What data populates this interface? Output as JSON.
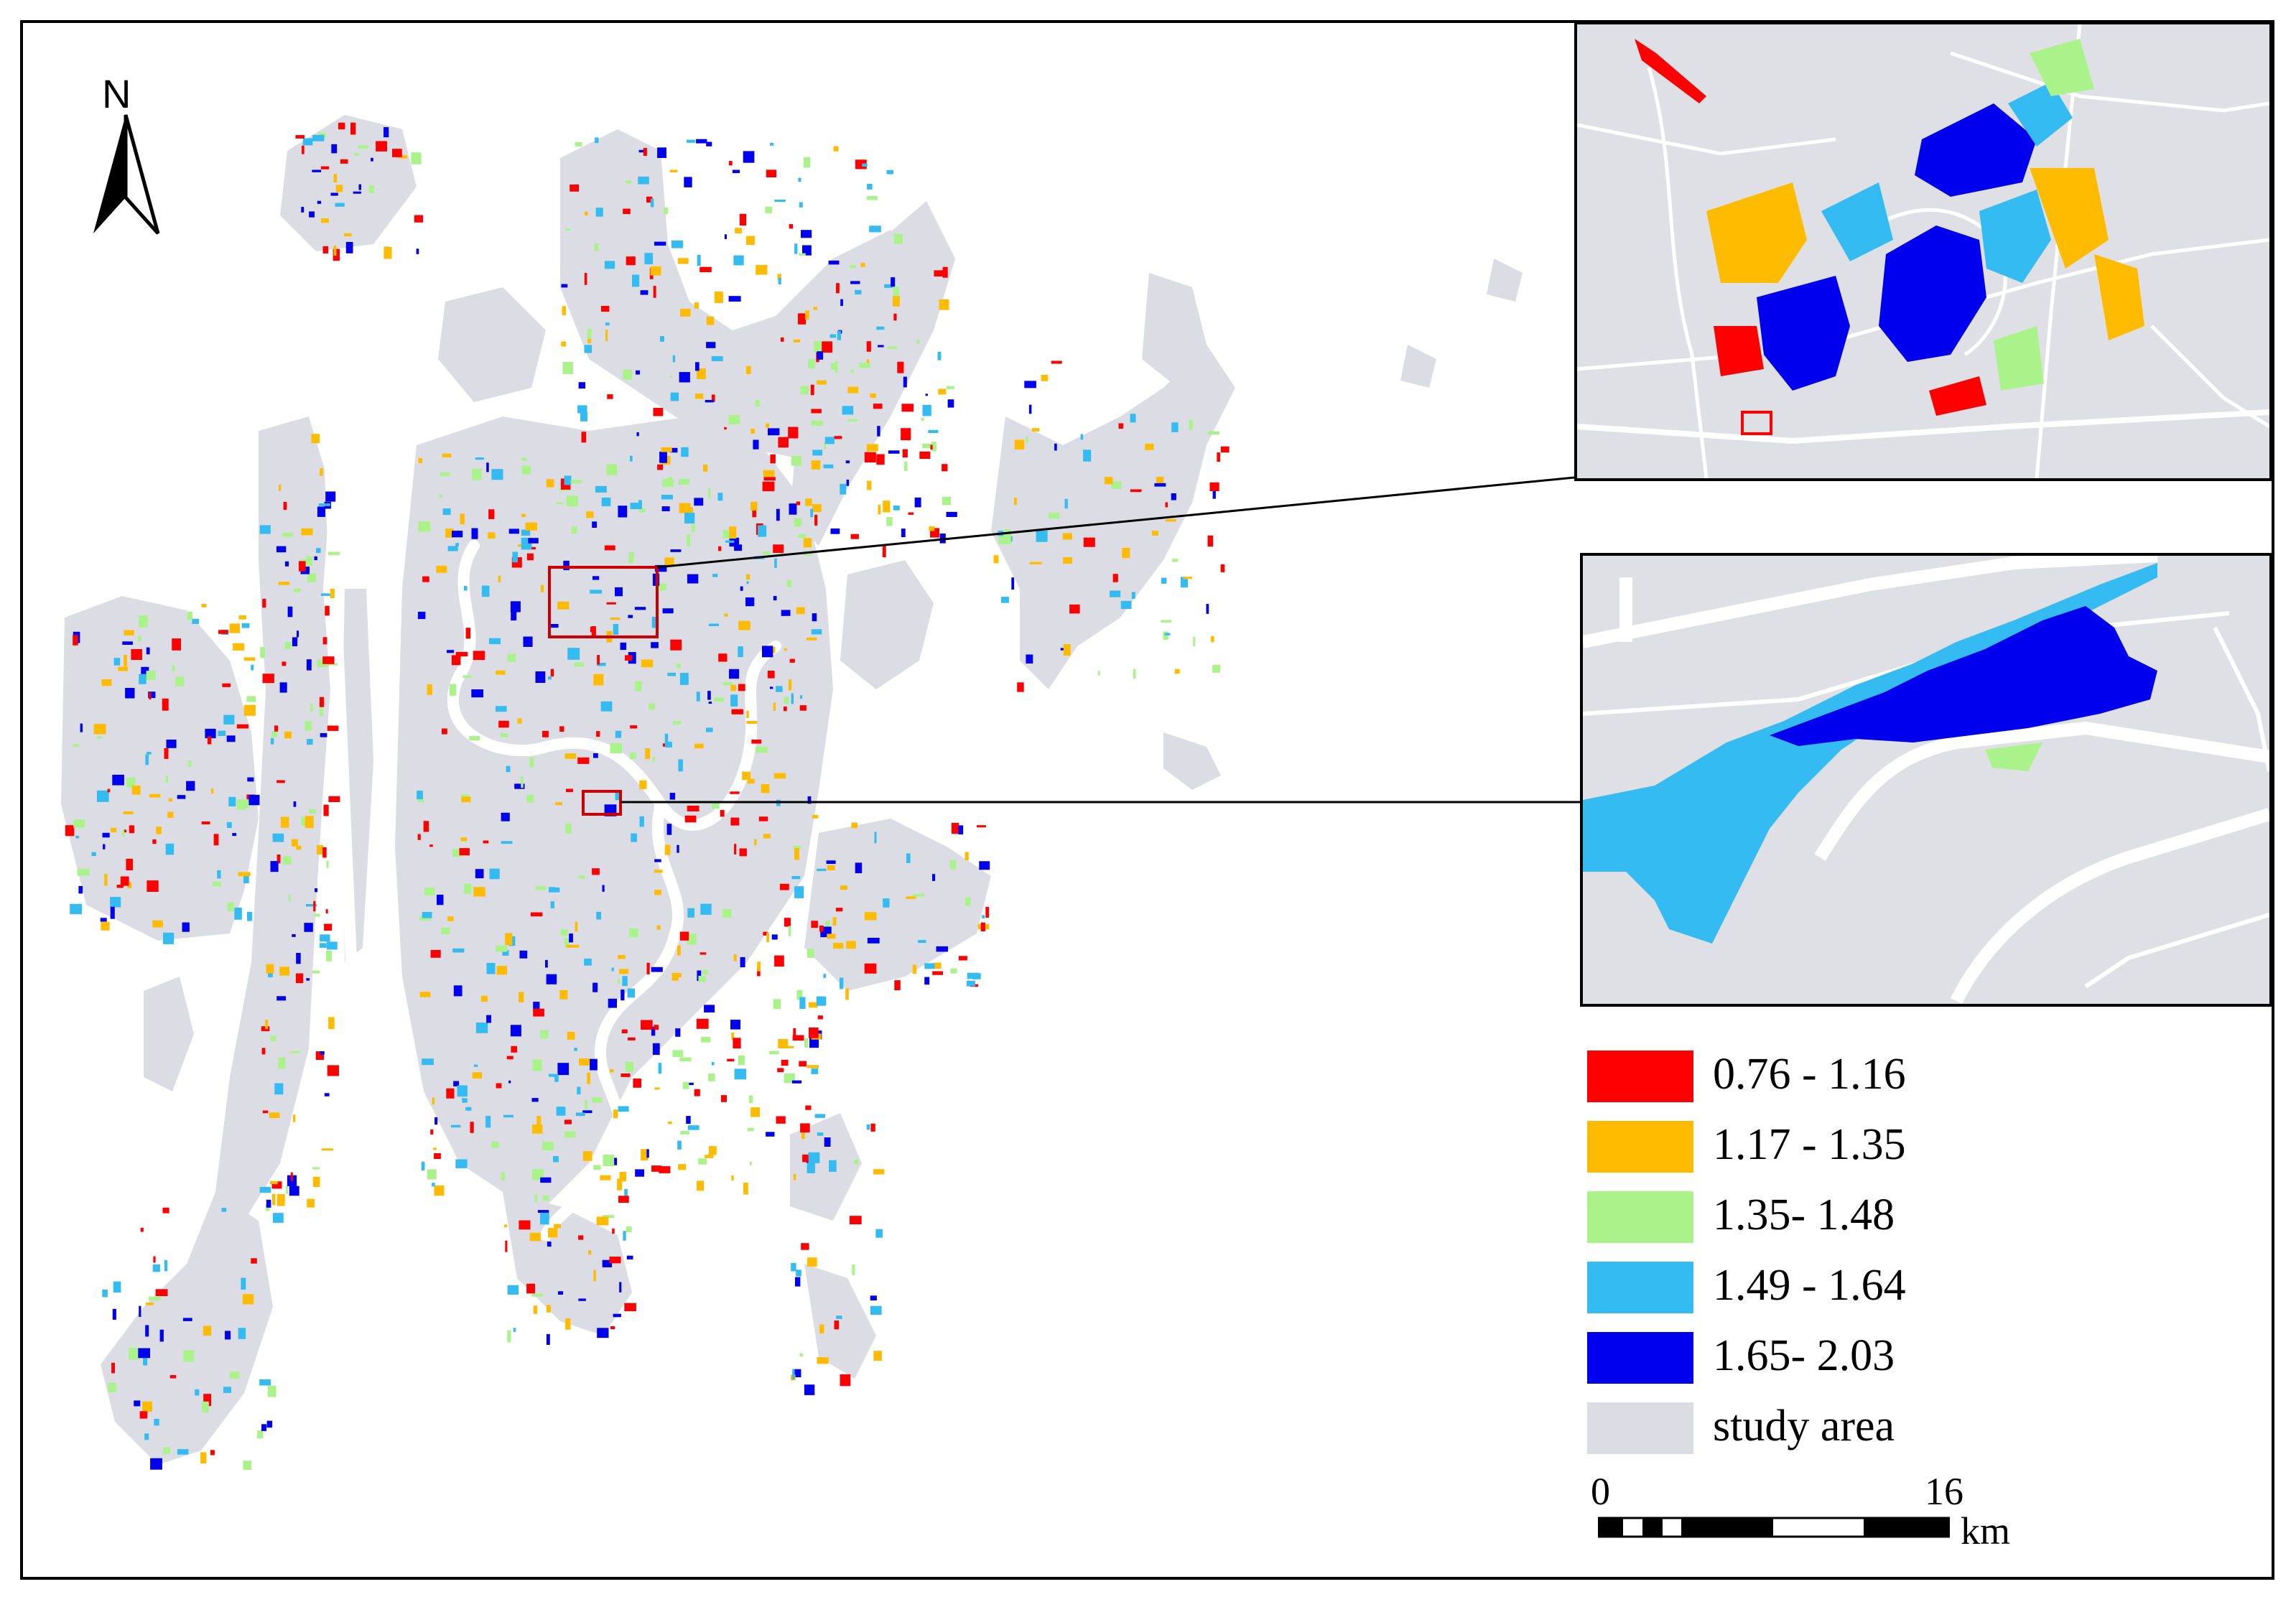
{
  "north_arrow": {
    "label": "N"
  },
  "legend": {
    "items": [
      {
        "label": "0.76 - 1.16",
        "color": "#ff0000"
      },
      {
        "label": "1.17 - 1.35",
        "color": "#ffbb00"
      },
      {
        "label": "1.35- 1.48",
        "color": "#aaf28a"
      },
      {
        "label": "1.49 - 1.64",
        "color": "#33bbf2"
      },
      {
        "label": "1.65- 2.03",
        "color": "#0000ee"
      },
      {
        "label": "study area",
        "color": "#dcdde4"
      }
    ]
  },
  "scale_bar": {
    "start": "0",
    "end": "16",
    "unit": "km"
  },
  "colors": {
    "study_area": "#dcdde4",
    "river": "#ffffff",
    "highlight_box": "#cc0000"
  }
}
